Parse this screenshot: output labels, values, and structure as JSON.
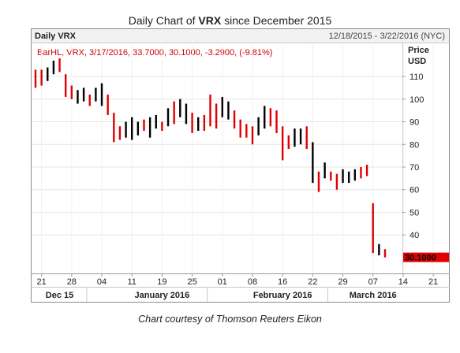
{
  "title": {
    "prefix": "Daily Chart of ",
    "ticker": "VRX",
    "suffix": " since December 2015"
  },
  "panel": {
    "symbol_label": "Daily VRX",
    "date_range": "12/18/2015 - 3/22/2016 (NYC)",
    "info_line": "BarHL, VRX, 3/17/2016, 33.7000, 30.1000, -3.2900, (-9.81%)",
    "last_price_label": "30.1000"
  },
  "caption": "Chart courtesy of Thomson Reuters Eikon",
  "chart_data": {
    "type": "bar",
    "ylabel": "Price USD",
    "ylim": [
      23,
      125
    ],
    "y_ticks": [
      40,
      50,
      60,
      70,
      80,
      90,
      100,
      110
    ],
    "x_tick_labels": [
      "21",
      "28",
      "04",
      "11",
      "19",
      "25",
      "01",
      "08",
      "16",
      "22",
      "29",
      "07",
      "14",
      "21"
    ],
    "x_month_labels": [
      "Dec 15",
      "January 2016",
      "February 2016",
      "March 2016"
    ],
    "colors": {
      "up": "#000000",
      "down": "#e00000",
      "price_tag": "#e00000"
    },
    "bars": [
      {
        "high": 113,
        "low": 105,
        "dir": "down"
      },
      {
        "high": 113,
        "low": 106,
        "dir": "down"
      },
      {
        "high": 114,
        "low": 108,
        "dir": "up"
      },
      {
        "high": 117,
        "low": 111,
        "dir": "up"
      },
      {
        "high": 118,
        "low": 112,
        "dir": "down"
      },
      {
        "high": 111,
        "low": 101,
        "dir": "down"
      },
      {
        "high": 106,
        "low": 100,
        "dir": "down"
      },
      {
        "high": 104,
        "low": 98,
        "dir": "up"
      },
      {
        "high": 105,
        "low": 99,
        "dir": "up"
      },
      {
        "high": 102,
        "low": 97,
        "dir": "down"
      },
      {
        "high": 105,
        "low": 99,
        "dir": "up"
      },
      {
        "high": 107,
        "low": 97,
        "dir": "up"
      },
      {
        "high": 102,
        "low": 93,
        "dir": "down"
      },
      {
        "high": 94,
        "low": 81,
        "dir": "down"
      },
      {
        "high": 88,
        "low": 82,
        "dir": "down"
      },
      {
        "high": 90,
        "low": 83,
        "dir": "up"
      },
      {
        "high": 92,
        "low": 82,
        "dir": "up"
      },
      {
        "high": 90,
        "low": 84,
        "dir": "up"
      },
      {
        "high": 91,
        "low": 86,
        "dir": "down"
      },
      {
        "high": 92,
        "low": 83,
        "dir": "up"
      },
      {
        "high": 93,
        "low": 87,
        "dir": "up"
      },
      {
        "high": 90,
        "low": 86,
        "dir": "down"
      },
      {
        "high": 96,
        "low": 88,
        "dir": "up"
      },
      {
        "high": 99,
        "low": 89,
        "dir": "down"
      },
      {
        "high": 100,
        "low": 92,
        "dir": "up"
      },
      {
        "high": 98,
        "low": 89,
        "dir": "up"
      },
      {
        "high": 94,
        "low": 85,
        "dir": "down"
      },
      {
        "high": 92,
        "low": 86,
        "dir": "up"
      },
      {
        "high": 93,
        "low": 86,
        "dir": "down"
      },
      {
        "high": 102,
        "low": 88,
        "dir": "down"
      },
      {
        "high": 98,
        "low": 87,
        "dir": "down"
      },
      {
        "high": 101,
        "low": 92,
        "dir": "up"
      },
      {
        "high": 99,
        "low": 91,
        "dir": "up"
      },
      {
        "high": 95,
        "low": 87,
        "dir": "down"
      },
      {
        "high": 91,
        "low": 83,
        "dir": "down"
      },
      {
        "high": 89,
        "low": 83,
        "dir": "down"
      },
      {
        "high": 88,
        "low": 80,
        "dir": "down"
      },
      {
        "high": 92,
        "low": 84,
        "dir": "up"
      },
      {
        "high": 97,
        "low": 87,
        "dir": "up"
      },
      {
        "high": 96,
        "low": 88,
        "dir": "down"
      },
      {
        "high": 95,
        "low": 85,
        "dir": "down"
      },
      {
        "high": 88,
        "low": 73,
        "dir": "down"
      },
      {
        "high": 84,
        "low": 78,
        "dir": "down"
      },
      {
        "high": 87,
        "low": 79,
        "dir": "up"
      },
      {
        "high": 87,
        "low": 80,
        "dir": "up"
      },
      {
        "high": 88,
        "low": 78,
        "dir": "down"
      },
      {
        "high": 81,
        "low": 63,
        "dir": "up"
      },
      {
        "high": 68,
        "low": 59,
        "dir": "down"
      },
      {
        "high": 72,
        "low": 65,
        "dir": "up"
      },
      {
        "high": 68,
        "low": 64,
        "dir": "down"
      },
      {
        "high": 67,
        "low": 60,
        "dir": "down"
      },
      {
        "high": 69,
        "low": 63,
        "dir": "up"
      },
      {
        "high": 68,
        "low": 63,
        "dir": "up"
      },
      {
        "high": 69,
        "low": 64,
        "dir": "up"
      },
      {
        "high": 70,
        "low": 65,
        "dir": "down"
      },
      {
        "high": 71,
        "low": 66,
        "dir": "down"
      },
      {
        "high": 54,
        "low": 32,
        "dir": "down"
      },
      {
        "high": 36,
        "low": 31,
        "dir": "up"
      },
      {
        "high": 33.7,
        "low": 30.1,
        "dir": "down"
      }
    ]
  }
}
